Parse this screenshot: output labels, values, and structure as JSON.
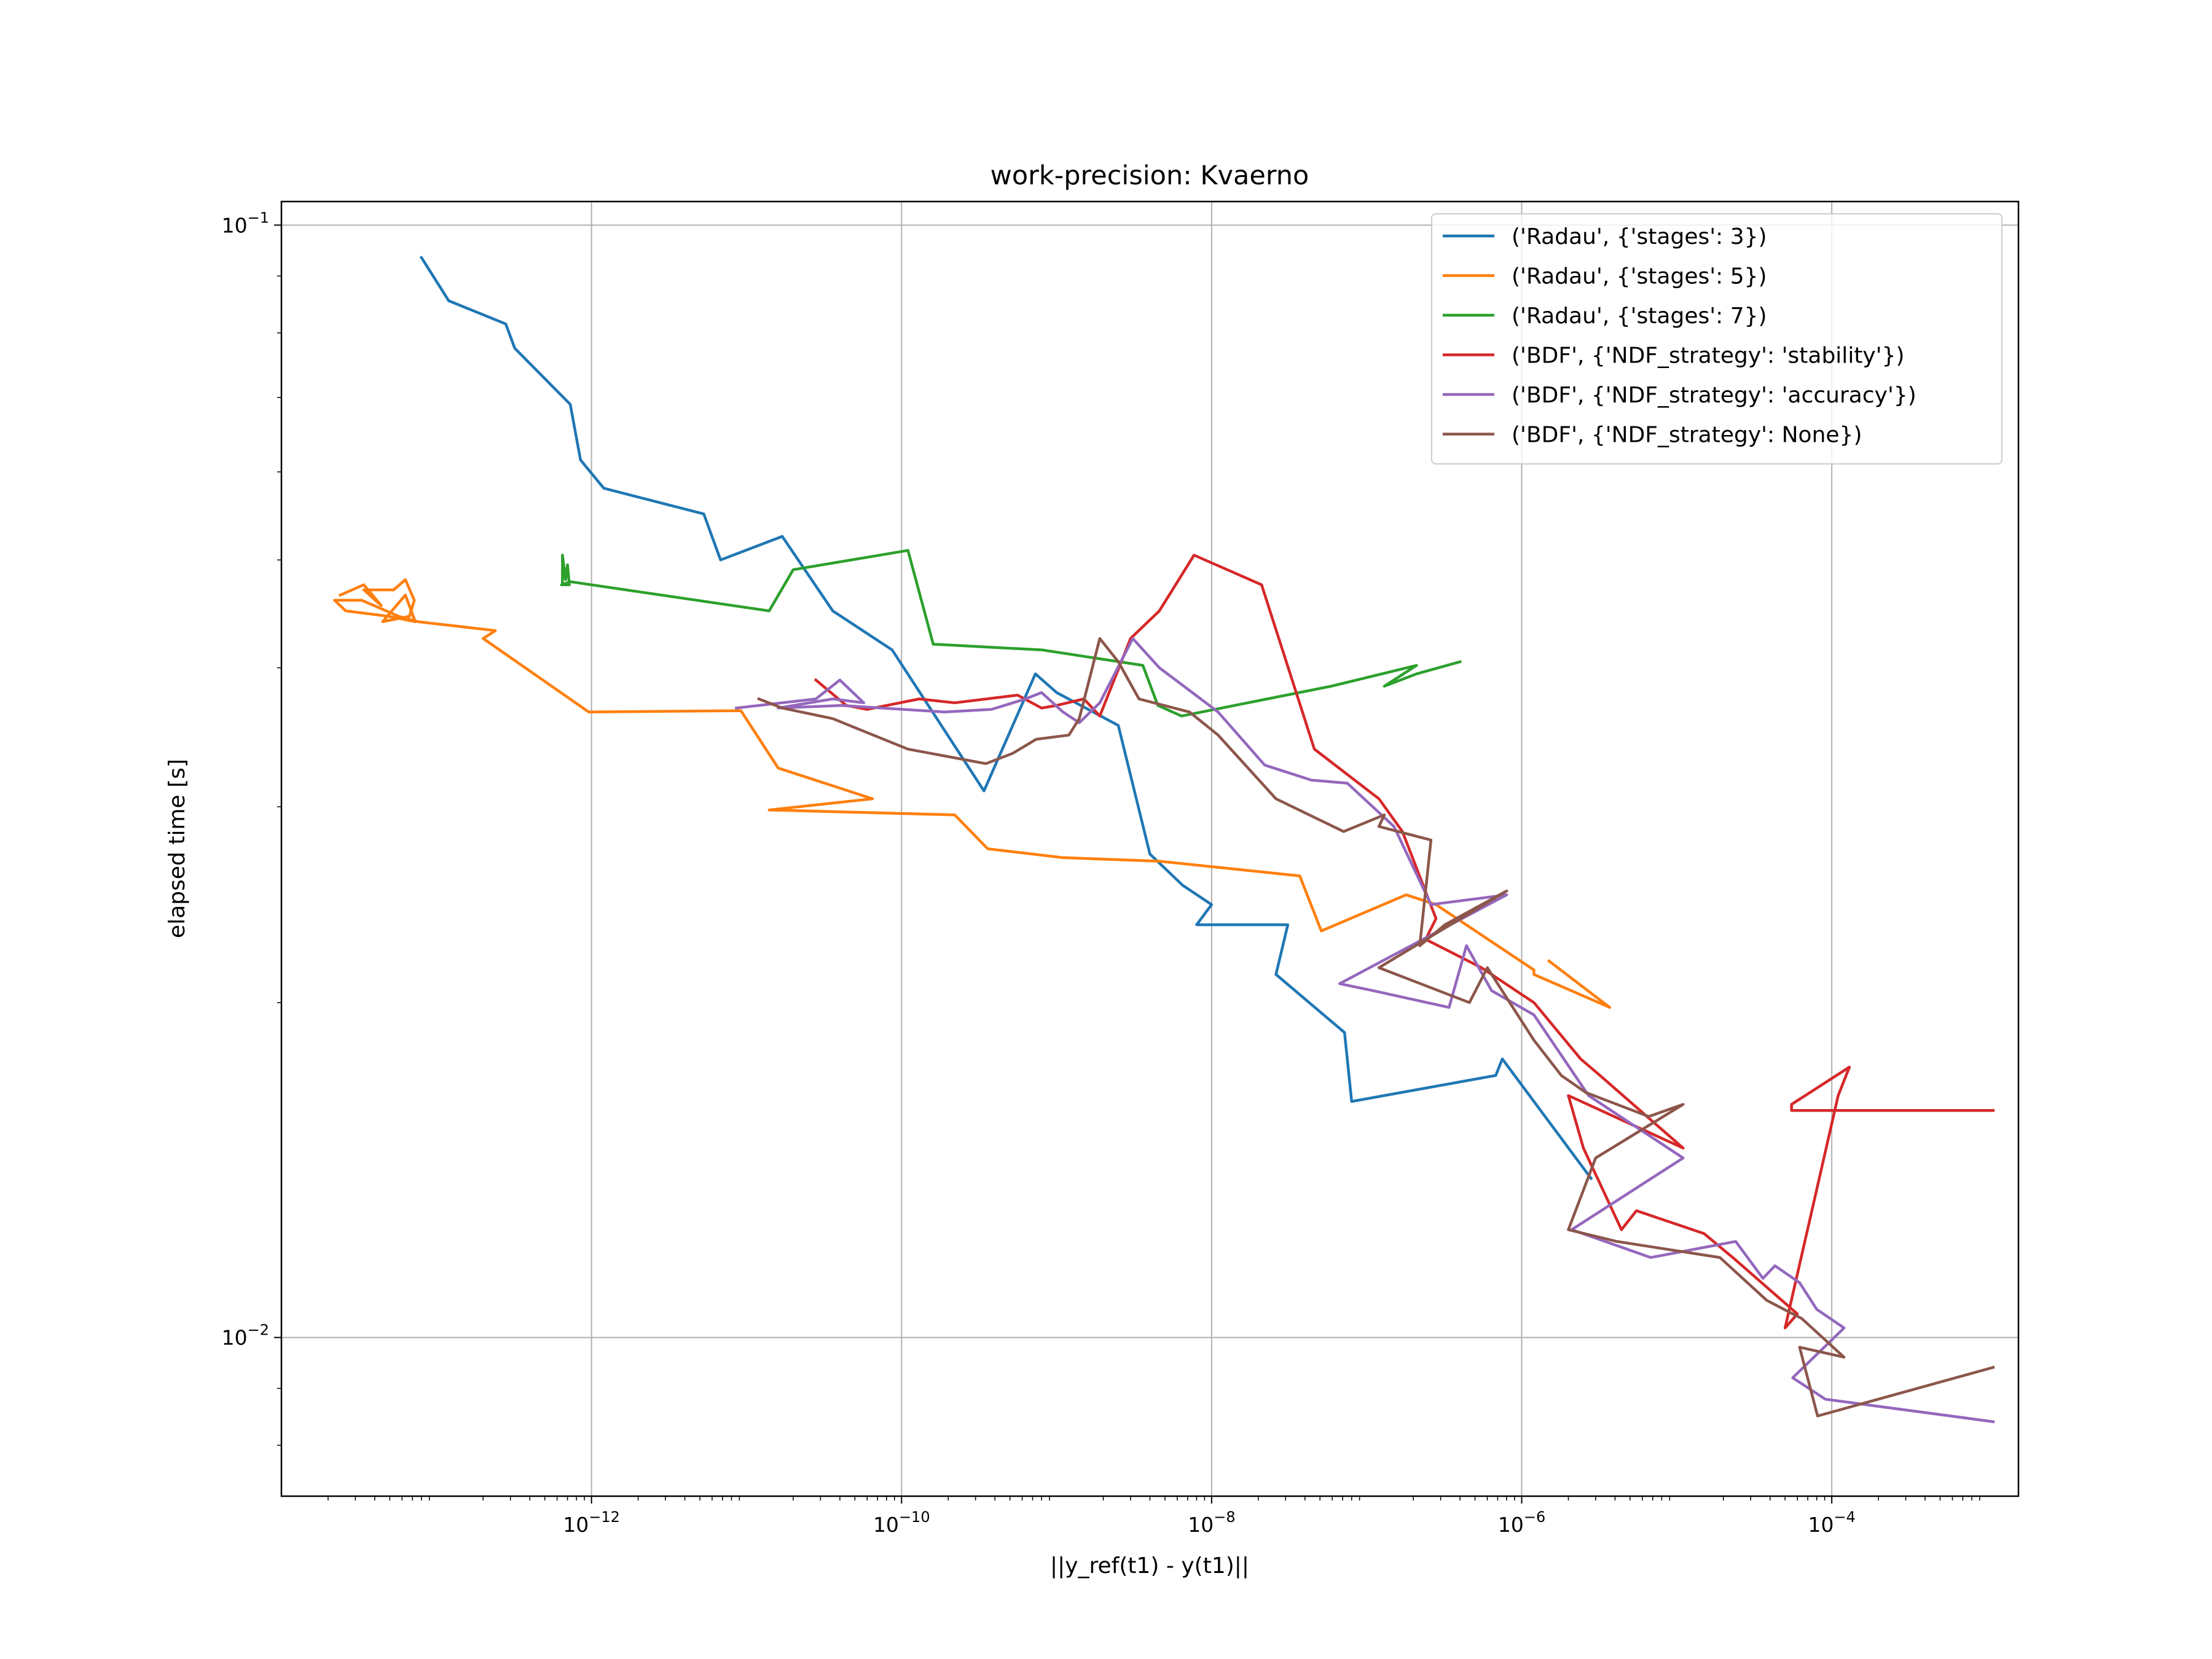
{
  "chart_data": {
    "type": "line",
    "title": "work-precision: Kvaerno",
    "xlabel": "||y_ref(t1) - y(t1)||",
    "ylabel": "elapsed time [s]",
    "x_scale": "log",
    "y_scale": "log",
    "xlim": [
      1e-14,
      0.0016
    ],
    "ylim": [
      0.0072,
      0.105
    ],
    "grid": true,
    "legend_position": "top-right",
    "x_ticks": [
      {
        "base": "10",
        "exp": "−12",
        "value": 1e-12
      },
      {
        "base": "10",
        "exp": "−10",
        "value": 1e-10
      },
      {
        "base": "10",
        "exp": "−8",
        "value": 1e-08
      },
      {
        "base": "10",
        "exp": "−6",
        "value": 1e-06
      },
      {
        "base": "10",
        "exp": "−4",
        "value": 0.0001
      }
    ],
    "y_ticks": [
      {
        "base": "10",
        "exp": "−1",
        "value": 0.1
      },
      {
        "base": "10",
        "exp": "−2",
        "value": 0.01
      }
    ],
    "series": [
      {
        "name": "('Radau', {'stages': 3})",
        "color": "#1f77b4",
        "points": [
          [
            8e-14,
            0.0935
          ],
          [
            1.2e-13,
            0.0855
          ],
          [
            2.8e-13,
            0.0815
          ],
          [
            3.2e-13,
            0.0775
          ],
          [
            7.3e-13,
            0.069
          ],
          [
            8.5e-13,
            0.0615
          ],
          [
            1.2e-12,
            0.058
          ],
          [
            5.3e-12,
            0.055
          ],
          [
            6.8e-12,
            0.05
          ],
          [
            1.7e-11,
            0.0525
          ],
          [
            3.6e-11,
            0.045
          ],
          [
            8.7e-11,
            0.0415
          ],
          [
            3.4e-10,
            0.031
          ],
          [
            7.3e-10,
            0.0395
          ],
          [
            1e-09,
            0.038
          ],
          [
            2.5e-09,
            0.0355
          ],
          [
            4e-09,
            0.0272
          ],
          [
            6.5e-09,
            0.0255
          ],
          [
            1e-08,
            0.0245
          ],
          [
            8e-09,
            0.0235
          ],
          [
            3.1e-08,
            0.0235
          ],
          [
            2.6e-08,
            0.0212
          ],
          [
            7.2e-08,
            0.0188
          ],
          [
            8e-08,
            0.0163
          ],
          [
            6.8e-07,
            0.0172
          ],
          [
            7.5e-07,
            0.0178
          ],
          [
            2.8e-06,
            0.0139
          ]
        ]
      },
      {
        "name": "('Radau', {'stages': 5})",
        "color": "#ff7f0e",
        "points": [
          [
            2.4e-14,
            0.0465
          ],
          [
            3.4e-14,
            0.0475
          ],
          [
            4.4e-14,
            0.0455
          ],
          [
            3.4e-14,
            0.047
          ],
          [
            5.3e-14,
            0.047
          ],
          [
            6.3e-14,
            0.048
          ],
          [
            7.2e-14,
            0.046
          ],
          [
            6.7e-14,
            0.0445
          ],
          [
            4.5e-14,
            0.044
          ],
          [
            6.3e-14,
            0.0465
          ],
          [
            7.3e-14,
            0.044
          ],
          [
            4.9e-14,
            0.0445
          ],
          [
            2.6e-14,
            0.045
          ],
          [
            2.2e-14,
            0.046
          ],
          [
            3.3e-14,
            0.046
          ],
          [
            5.7e-14,
            0.0445
          ],
          [
            7.6e-14,
            0.044
          ],
          [
            2.4e-13,
            0.0432
          ],
          [
            2e-13,
            0.0425
          ],
          [
            9.6e-13,
            0.0365
          ],
          [
            9.2e-12,
            0.0366
          ],
          [
            1.6e-11,
            0.0325
          ],
          [
            6.5e-11,
            0.0305
          ],
          [
            1.4e-11,
            0.0298
          ],
          [
            2.2e-10,
            0.0295
          ],
          [
            3.6e-10,
            0.0275
          ],
          [
            1.1e-09,
            0.027
          ],
          [
            4.6e-09,
            0.0268
          ],
          [
            3.7e-08,
            0.026
          ],
          [
            5.1e-08,
            0.0232
          ],
          [
            1.8e-07,
            0.025
          ],
          [
            2.8e-07,
            0.0245
          ],
          [
            1.2e-06,
            0.0214
          ],
          [
            1.2e-06,
            0.0212
          ],
          [
            3.7e-06,
            0.0198
          ],
          [
            1.5e-06,
            0.0218
          ]
        ]
      },
      {
        "name": "('Radau', {'stages': 7})",
        "color": "#2ca02c",
        "points": [
          [
            6.5e-13,
            0.0475
          ],
          [
            6.5e-13,
            0.0505
          ],
          [
            6.8e-13,
            0.048
          ],
          [
            7e-13,
            0.0495
          ],
          [
            7.2e-13,
            0.0475
          ],
          [
            6.4e-13,
            0.0475
          ],
          [
            7.3e-13,
            0.0478
          ],
          [
            1.4e-11,
            0.045
          ],
          [
            2e-11,
            0.049
          ],
          [
            1.1e-10,
            0.051
          ],
          [
            1.6e-10,
            0.042
          ],
          [
            8.1e-10,
            0.0415
          ],
          [
            3.6e-09,
            0.0402
          ],
          [
            4.5e-09,
            0.037
          ],
          [
            6.4e-09,
            0.0362
          ],
          [
            5.9e-08,
            0.0385
          ],
          [
            2.1e-07,
            0.0402
          ],
          [
            1.3e-07,
            0.0385
          ],
          [
            2.1e-07,
            0.0395
          ],
          [
            4e-07,
            0.0405
          ]
        ]
      },
      {
        "name": "('BDF', {'NDF_strategy': 'stability'})",
        "color": "#d62728",
        "points": [
          [
            2.8e-11,
            0.039
          ],
          [
            4.4e-11,
            0.037
          ],
          [
            6e-11,
            0.0367
          ],
          [
            1.3e-10,
            0.0375
          ],
          [
            2.2e-10,
            0.0372
          ],
          [
            5.6e-10,
            0.0378
          ],
          [
            8e-10,
            0.0368
          ],
          [
            1e-09,
            0.037
          ],
          [
            1.5e-09,
            0.0375
          ],
          [
            1.9e-09,
            0.0362
          ],
          [
            3e-09,
            0.0425
          ],
          [
            4.6e-09,
            0.045
          ],
          [
            7.7e-09,
            0.0505
          ],
          [
            2.1e-08,
            0.0475
          ],
          [
            4.6e-08,
            0.0338
          ],
          [
            1.2e-07,
            0.0305
          ],
          [
            1.7e-07,
            0.0285
          ],
          [
            2.8e-07,
            0.0238
          ],
          [
            2.4e-07,
            0.0228
          ],
          [
            5.5e-07,
            0.0215
          ],
          [
            1.2e-06,
            0.02
          ],
          [
            2.4e-06,
            0.0178
          ],
          [
            3.2e-06,
            0.0172
          ],
          [
            1.1e-05,
            0.0148
          ],
          [
            2e-06,
            0.0165
          ],
          [
            2.5e-06,
            0.0148
          ],
          [
            4.4e-06,
            0.0125
          ],
          [
            5.5e-06,
            0.013
          ],
          [
            1.5e-05,
            0.0124
          ],
          [
            2.3e-05,
            0.0118
          ],
          [
            6e-05,
            0.0105
          ],
          [
            5e-05,
            0.0102
          ],
          [
            0.00011,
            0.0165
          ],
          [
            0.00013,
            0.0175
          ],
          [
            5.5e-05,
            0.0162
          ],
          [
            5.5e-05,
            0.016
          ],
          [
            0.0011,
            0.016
          ]
        ]
      },
      {
        "name": "('BDF', {'NDF_strategy': 'accuracy'})",
        "color": "#9467bd",
        "points": [
          [
            8.6e-12,
            0.0368
          ],
          [
            2.8e-11,
            0.0375
          ],
          [
            4e-11,
            0.039
          ],
          [
            5.7e-11,
            0.0372
          ],
          [
            3.6e-11,
            0.0375
          ],
          [
            1.6e-11,
            0.0368
          ],
          [
            4.1e-11,
            0.037
          ],
          [
            1.9e-10,
            0.0365
          ],
          [
            3.8e-10,
            0.0367
          ],
          [
            6.3e-10,
            0.0375
          ],
          [
            8e-10,
            0.038
          ],
          [
            1.1e-09,
            0.0365
          ],
          [
            1.4e-09,
            0.0357
          ],
          [
            1.9e-09,
            0.0372
          ],
          [
            3.1e-09,
            0.0425
          ],
          [
            4.6e-09,
            0.04
          ],
          [
            7.5e-09,
            0.038
          ],
          [
            1.1e-08,
            0.0365
          ],
          [
            2.2e-08,
            0.0327
          ],
          [
            4.4e-08,
            0.0317
          ],
          [
            7.5e-08,
            0.0315
          ],
          [
            1.5e-07,
            0.0288
          ],
          [
            2.6e-07,
            0.0245
          ],
          [
            8e-07,
            0.025
          ],
          [
            6.7e-08,
            0.0208
          ],
          [
            1.1e-07,
            0.0205
          ],
          [
            3.4e-07,
            0.0198
          ],
          [
            4.4e-07,
            0.0225
          ],
          [
            6.4e-07,
            0.0205
          ],
          [
            1.2e-06,
            0.0195
          ],
          [
            2.7e-06,
            0.0165
          ],
          [
            1.1e-05,
            0.0145
          ],
          [
            2.1e-06,
            0.0125
          ],
          [
            6.8e-06,
            0.0118
          ],
          [
            2.4e-05,
            0.0122
          ],
          [
            3.6e-05,
            0.0113
          ],
          [
            4.3e-05,
            0.0116
          ],
          [
            6.2e-05,
            0.0112
          ],
          [
            8e-05,
            0.0106
          ],
          [
            0.00012,
            0.0102
          ],
          [
            5.6e-05,
            0.0092
          ],
          [
            9.1e-05,
            0.0088
          ],
          [
            0.0011,
            0.0084
          ]
        ]
      },
      {
        "name": "('BDF', {'NDF_strategy': None})",
        "color": "#8c564b",
        "points": [
          [
            1.2e-11,
            0.0375
          ],
          [
            1.7e-11,
            0.0368
          ],
          [
            3.6e-11,
            0.036
          ],
          [
            1.1e-10,
            0.0338
          ],
          [
            3.5e-10,
            0.0328
          ],
          [
            5.2e-10,
            0.0335
          ],
          [
            7.4e-10,
            0.0345
          ],
          [
            1.2e-09,
            0.0348
          ],
          [
            1.4e-09,
            0.036
          ],
          [
            1.9e-09,
            0.0425
          ],
          [
            2.5e-09,
            0.0405
          ],
          [
            3.4e-09,
            0.0375
          ],
          [
            7.2e-09,
            0.0365
          ],
          [
            1.1e-08,
            0.0348
          ],
          [
            2.6e-08,
            0.0305
          ],
          [
            7.1e-08,
            0.0285
          ],
          [
            1.3e-07,
            0.0295
          ],
          [
            1.2e-07,
            0.0288
          ],
          [
            2.6e-07,
            0.028
          ],
          [
            2.2e-07,
            0.0225
          ],
          [
            3.2e-07,
            0.0235
          ],
          [
            8e-07,
            0.0252
          ],
          [
            1.2e-07,
            0.0215
          ],
          [
            4.6e-07,
            0.02
          ],
          [
            6e-07,
            0.0215
          ],
          [
            1.2e-06,
            0.0185
          ],
          [
            1.8e-06,
            0.0172
          ],
          [
            2.6e-06,
            0.0166
          ],
          [
            6.6e-06,
            0.0158
          ],
          [
            1.1e-05,
            0.0162
          ],
          [
            3e-06,
            0.0145
          ],
          [
            2e-06,
            0.0125
          ],
          [
            4.1e-06,
            0.0122
          ],
          [
            1.9e-05,
            0.0118
          ],
          [
            3.8e-05,
            0.0108
          ],
          [
            6.4e-05,
            0.0104
          ],
          [
            0.00012,
            0.0096
          ],
          [
            6.2e-05,
            0.0098
          ],
          [
            8.1e-05,
            0.0085
          ],
          [
            0.0011,
            0.0094
          ]
        ]
      }
    ]
  }
}
